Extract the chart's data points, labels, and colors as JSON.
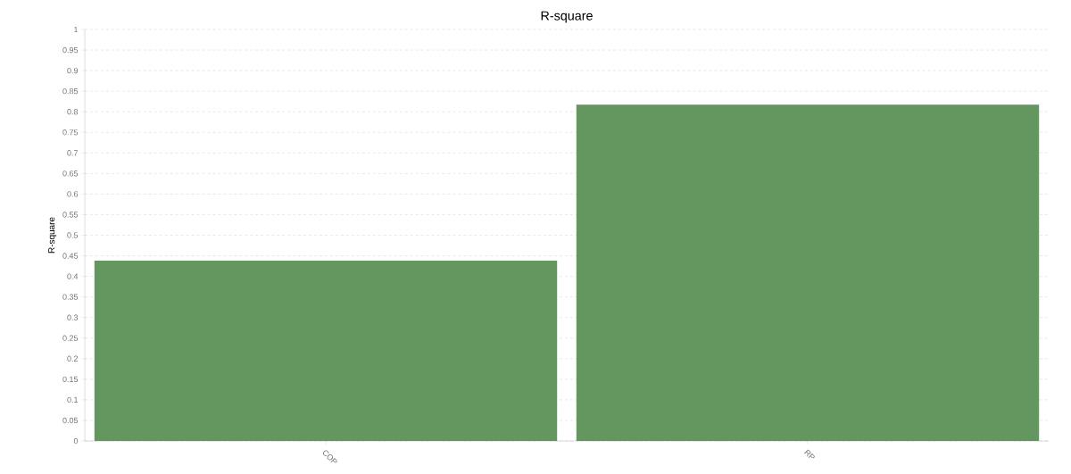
{
  "chart_data": {
    "type": "bar",
    "title": "R-square",
    "ylabel": "R-square",
    "categories": [
      "COP",
      "RP"
    ],
    "values": [
      0.438,
      0.817
    ],
    "color": "#64965f",
    "ylim": [
      0,
      1
    ],
    "yticks": [
      0,
      0.05,
      0.1,
      0.15,
      0.2,
      0.25,
      0.3,
      0.35,
      0.4,
      0.45,
      0.5,
      0.55,
      0.6,
      0.65,
      0.7,
      0.75,
      0.8,
      0.85,
      0.9,
      0.95,
      1
    ],
    "grid": "y"
  }
}
